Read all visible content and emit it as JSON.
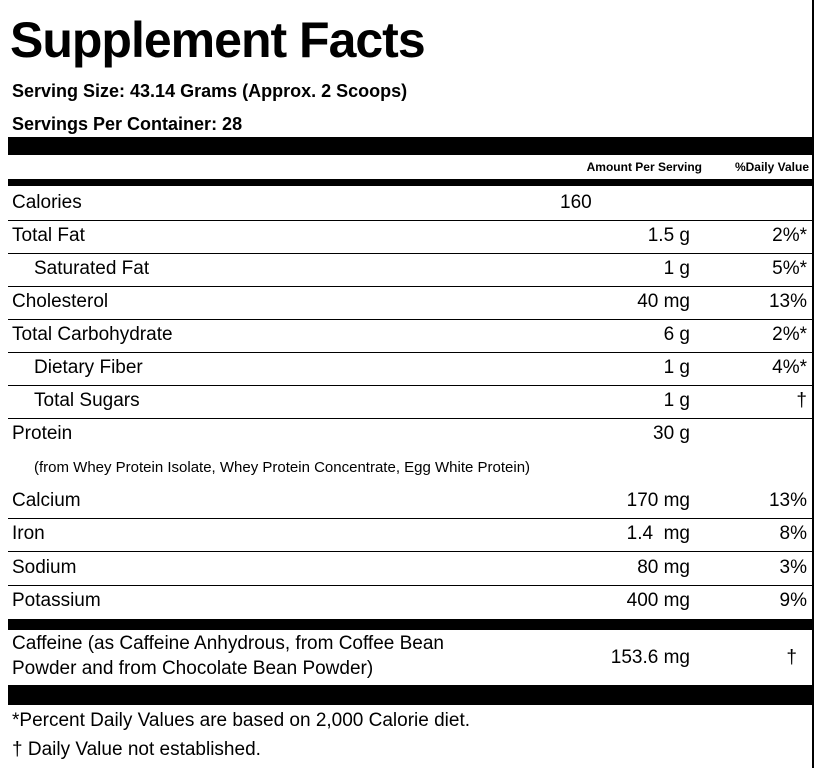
{
  "header": {
    "title": "Supplement Facts",
    "serving_size": "Serving Size: 43.14 Grams (Approx. 2 Scoops)",
    "servings_per_container": "Servings Per Container: 28"
  },
  "table": {
    "columns": {
      "amount": "Amount Per Serving",
      "daily_value": "%Daily Value"
    },
    "rows": [
      {
        "name": "Calories",
        "amount": "160"
      },
      {
        "name": "Total Fat",
        "amount": "1.5 g",
        "daily_value": "2%*"
      },
      {
        "name": "Saturated Fat",
        "amount": "1 g",
        "daily_value": "5%*"
      },
      {
        "name": "Cholesterol",
        "amount": "40 mg",
        "daily_value": "13%"
      },
      {
        "name": "Total Carbohydrate",
        "amount": "6 g",
        "daily_value": "2%*"
      },
      {
        "name": "Dietary Fiber",
        "amount": "1 g",
        "daily_value": "4%*"
      },
      {
        "name": "Total Sugars",
        "amount": "1 g",
        "daily_value": "†"
      },
      {
        "name": "Protein",
        "amount": "30 g"
      },
      {
        "name": "Calcium",
        "amount": "170 mg",
        "daily_value": "13%"
      },
      {
        "name": "Iron",
        "amount": "1.4  mg",
        "daily_value": "8%"
      },
      {
        "name": "Sodium",
        "amount": "80 mg",
        "daily_value": "3%"
      },
      {
        "name": "Potassium",
        "amount": "400 mg",
        "daily_value": "9%"
      }
    ],
    "protein_note": "(from Whey Protein Isolate, Whey Protein Concentrate, Egg White Protein)",
    "caffeine": {
      "name_line1": "Caffeine (as Caffeine Anhydrous, from Coffee Bean",
      "name_line2": "Powder and from Chocolate Bean Powder)",
      "amount": "153.6 mg",
      "daily_value": "†"
    }
  },
  "footnotes": [
    "*Percent Daily Values are based on 2,000 Calorie diet.",
    "† Daily Value not established."
  ]
}
